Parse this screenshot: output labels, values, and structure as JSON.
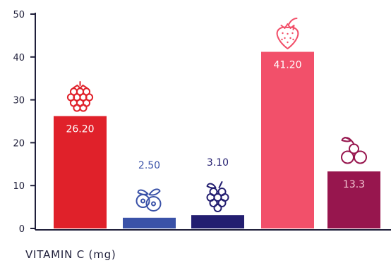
{
  "chart_data": {
    "type": "bar",
    "categories": [
      "Raspberry",
      "Blueberry",
      "Blackberry",
      "Strawberry",
      "Cranberry"
    ],
    "values": [
      26.2,
      2.5,
      3.1,
      41.2,
      13.3
    ],
    "value_labels": [
      "26.20",
      "2.50",
      "3.10",
      "41.20",
      "13.3"
    ],
    "ylim": [
      0,
      50
    ],
    "yticks": [
      0,
      10,
      20,
      30,
      40,
      50
    ],
    "ytick_labels": [
      "0",
      "10",
      "20",
      "30",
      "40",
      "50"
    ],
    "ylabel": "VITAMIN C (mg)",
    "grid": false,
    "bar_colors": [
      "#e0212a",
      "#3a52a8",
      "#231e70",
      "#f2506a",
      "#97164e"
    ],
    "label_colors": [
      "#ffffff",
      "#3a52a8",
      "#231e70",
      "#ffffff",
      "#f4c7d4"
    ],
    "label_positions": [
      "inside",
      "above",
      "above",
      "inside",
      "inside"
    ],
    "icons": [
      "raspberry-icon",
      "blueberry-icon",
      "blackberry-icon",
      "strawberry-icon",
      "cranberry-icon"
    ]
  }
}
